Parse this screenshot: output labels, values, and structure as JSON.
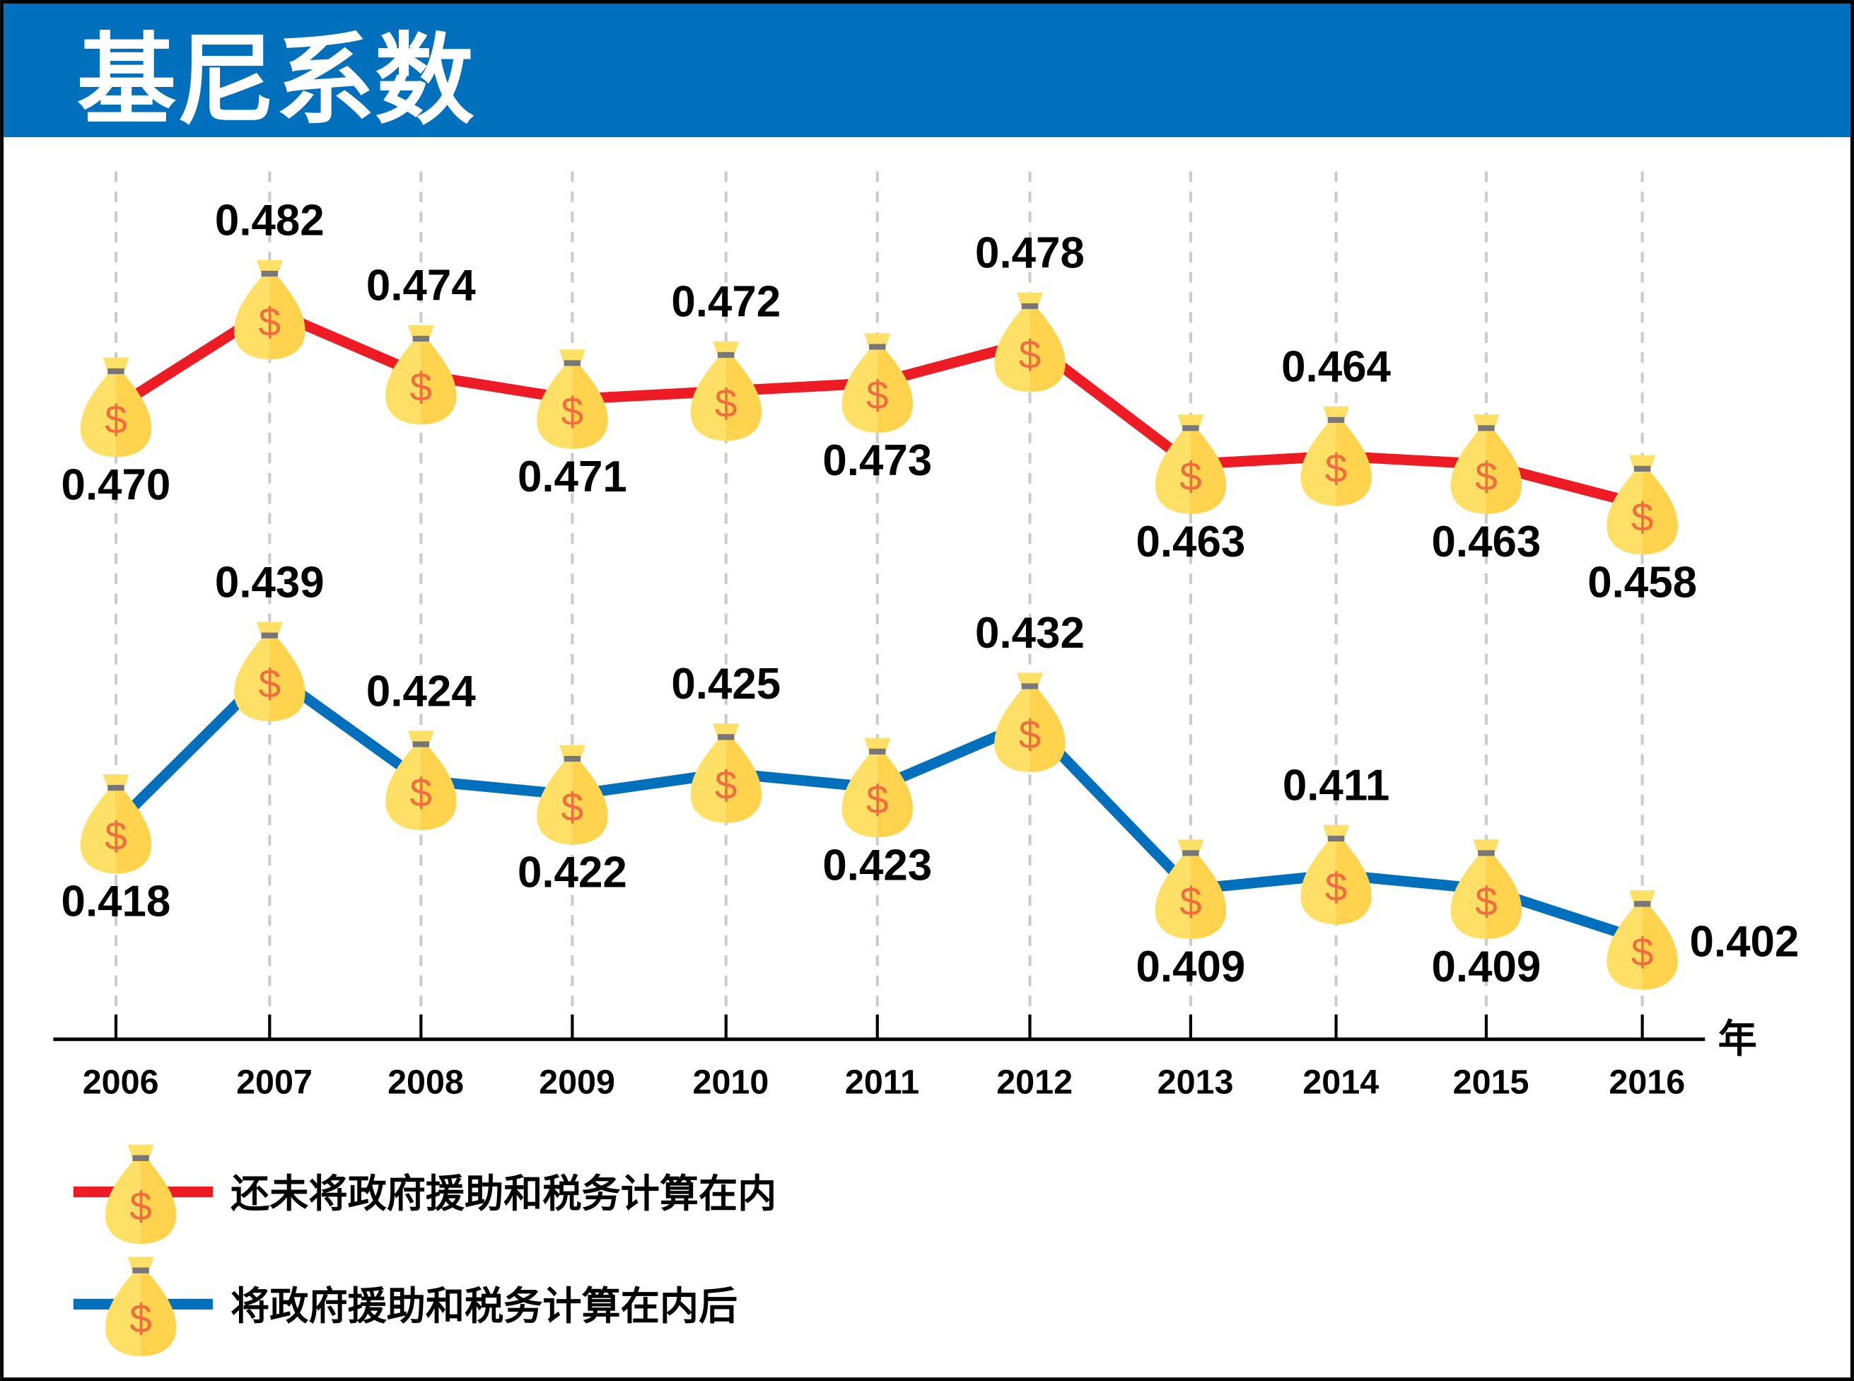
{
  "header": {
    "title": "基尼系数",
    "background_color": "#0070BC"
  },
  "chart_data": {
    "type": "line",
    "title": "基尼系数",
    "xlabel": "年",
    "ylabel": "",
    "categories": [
      "2006",
      "2007",
      "2008",
      "2009",
      "2010",
      "2011",
      "2012",
      "2013",
      "2014",
      "2015",
      "2016"
    ],
    "grid": "vertical dashed",
    "legend_placement": "bottom-left",
    "marker": "money-bag-icon",
    "series": [
      {
        "name": "还未将政府援助和税务计算在内",
        "color": "#ED1C24",
        "values": [
          0.47,
          0.482,
          0.474,
          0.471,
          0.472,
          0.473,
          0.478,
          0.463,
          0.464,
          0.463,
          0.458
        ],
        "labels": [
          "0.470",
          "0.482",
          "0.474",
          "0.471",
          "0.472",
          "0.473",
          "0.478",
          "0.463",
          "0.464",
          "0.463",
          "0.458"
        ]
      },
      {
        "name": "将政府援助和税务计算在内后",
        "color": "#0070BC",
        "values": [
          0.418,
          0.439,
          0.424,
          0.422,
          0.425,
          0.423,
          0.432,
          0.409,
          0.411,
          0.409,
          0.402
        ],
        "labels": [
          "0.418",
          "0.439",
          "0.424",
          "0.422",
          "0.425",
          "0.423",
          "0.432",
          "0.409",
          "0.411",
          "0.409",
          "0.402"
        ]
      }
    ]
  }
}
